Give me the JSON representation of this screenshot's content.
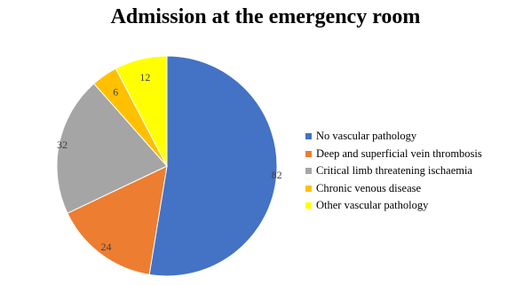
{
  "chart_data": {
    "type": "pie",
    "title": "Admission at the emergency room",
    "slices": [
      {
        "label": "No vascular pathology",
        "value": 82,
        "color": "#4472C4"
      },
      {
        "label": "Deep and superficial vein thrombosis",
        "value": 24,
        "color": "#ED7D31"
      },
      {
        "label": "Critical limb threatening ischaemia",
        "value": 32,
        "color": "#A5A5A5"
      },
      {
        "label": "Chronic venous disease",
        "value": 6,
        "color": "#FFC000"
      },
      {
        "label": "Other vascular pathology",
        "value": 12,
        "color": "#FFFF00"
      }
    ],
    "data_labels": true,
    "legend_position": "right"
  }
}
